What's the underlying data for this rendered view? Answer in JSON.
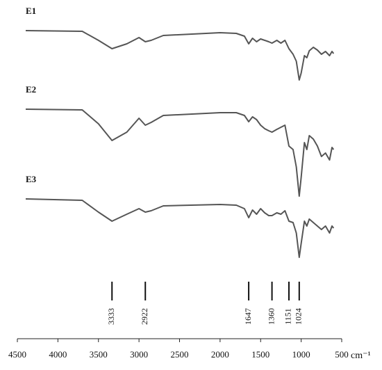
{
  "chart_data": {
    "type": "line",
    "x": [
      4397,
      3700,
      3500,
      3333,
      3150,
      3000,
      2922,
      2850,
      2700,
      2000,
      1800,
      1700,
      1647,
      1600,
      1550,
      1500,
      1450,
      1400,
      1360,
      1300,
      1250,
      1200,
      1151,
      1100,
      1060,
      1024,
      1000,
      960,
      930,
      900,
      850,
      800,
      750,
      700,
      650,
      620,
      600
    ],
    "series": [
      {
        "name": "E1",
        "color": "#555555",
        "values": [
          443,
          442,
          429,
          417,
          424,
          433,
          427,
          429,
          436,
          440,
          439,
          435,
          424,
          432,
          427,
          431,
          429,
          427,
          425,
          429,
          425,
          429,
          417,
          409,
          399,
          372,
          382,
          407,
          404,
          414,
          419,
          415,
          409,
          413,
          407,
          413,
          410
        ]
      },
      {
        "name": "E2",
        "color": "#555555",
        "values": [
          330,
          329,
          309,
          285,
          297,
          317,
          307,
          311,
          321,
          325,
          325,
          321,
          312,
          319,
          315,
          307,
          302,
          299,
          297,
          301,
          304,
          307,
          277,
          272,
          247,
          205,
          232,
          282,
          272,
          292,
          287,
          277,
          262,
          267,
          257,
          275,
          272
        ]
      },
      {
        "name": "E3",
        "color": "#555555",
        "values": [
          201,
          199,
          182,
          169,
          179,
          187,
          182,
          184,
          191,
          193,
          192,
          187,
          174,
          185,
          179,
          187,
          181,
          177,
          177,
          181,
          179,
          184,
          169,
          167,
          152,
          117,
          137,
          169,
          162,
          172,
          167,
          162,
          157,
          162,
          152,
          162,
          159
        ]
      }
    ],
    "xlim": [
      4500,
      500
    ],
    "xticks": [
      4500,
      4000,
      3500,
      3000,
      2500,
      2000,
      1500,
      1000,
      500
    ],
    "ylim": [
      0,
      467
    ],
    "xlabel": "cm⁻¹",
    "peaks": [
      3333,
      2922,
      1647,
      1360,
      1151,
      1024
    ]
  }
}
